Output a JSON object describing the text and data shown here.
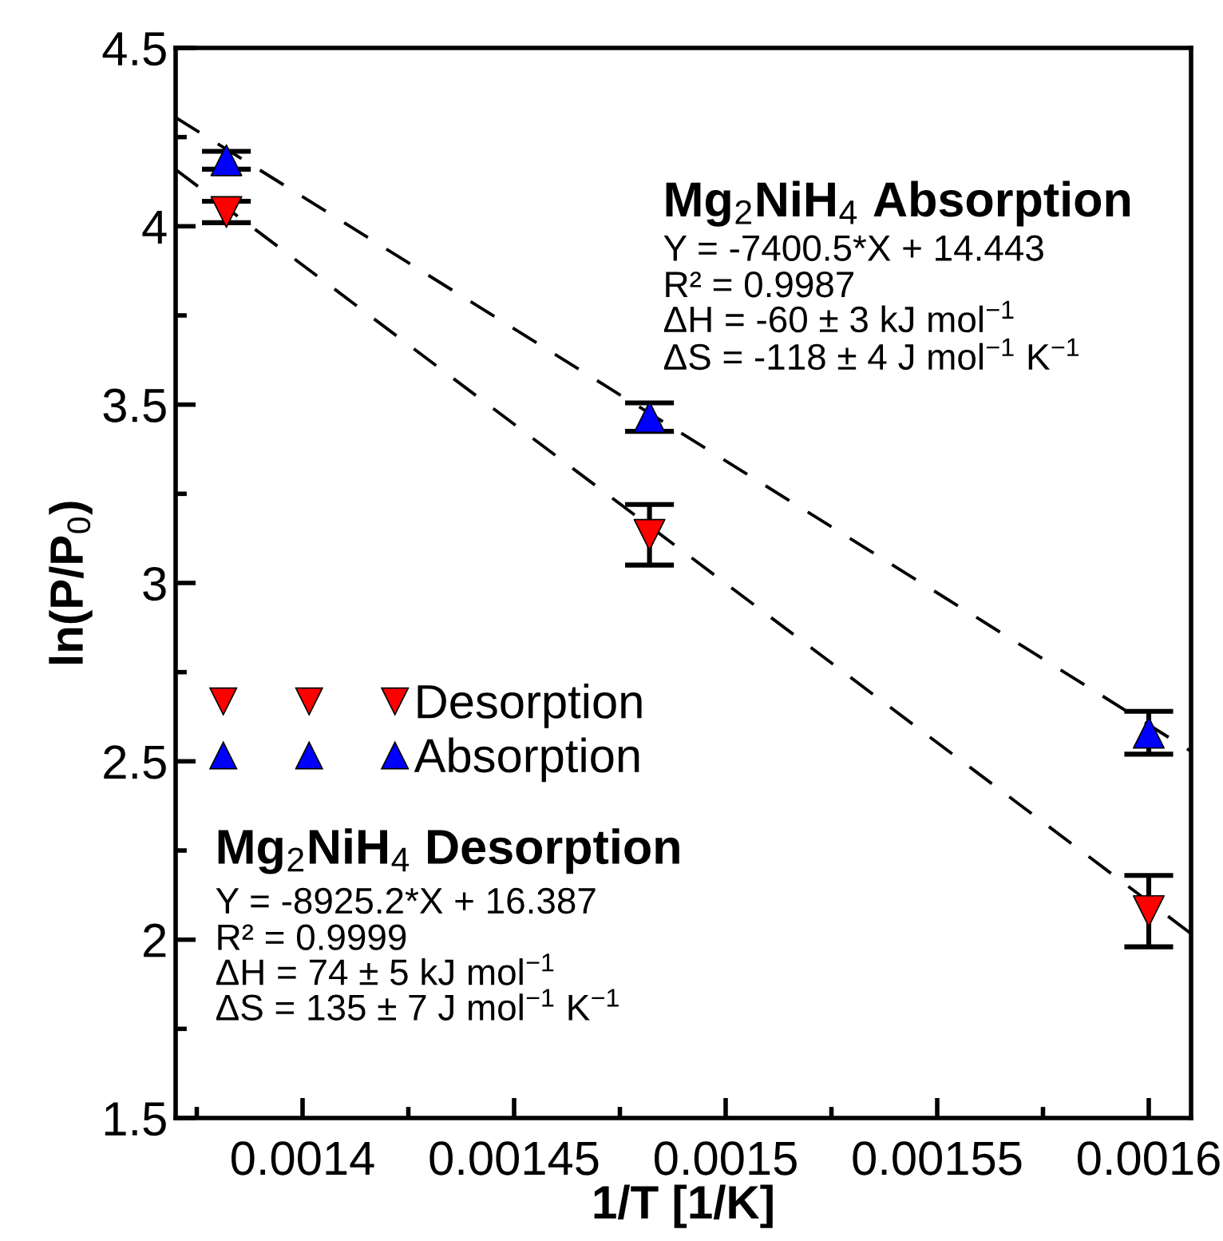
{
  "chart_data": {
    "type": "scatter",
    "xlabel": "1/T [1/K]",
    "ylabel": "ln(P/P$_{0}$)",
    "xlim": [
      0.00137,
      0.00161
    ],
    "ylim": [
      1.5,
      4.5
    ],
    "xticks": [
      {
        "value": 0.001375,
        "label": null
      },
      0.0014,
      {
        "value": 0.001425,
        "label": null
      },
      0.00145,
      {
        "value": 0.001475,
        "label": null
      },
      0.0015,
      {
        "value": 0.001525,
        "label": null
      },
      0.00155,
      {
        "value": 0.001575,
        "label": null
      },
      0.0016
    ],
    "yticks": [
      1.5,
      {
        "value": 1.75,
        "label": null
      },
      2,
      {
        "value": 2.25,
        "label": null
      },
      2.5,
      {
        "value": 2.75,
        "label": null
      },
      3,
      {
        "value": 3.25,
        "label": null
      },
      3.5,
      {
        "value": 3.75,
        "label": null
      },
      4,
      {
        "value": 4.25,
        "label": null
      },
      4.5
    ],
    "legend": "left",
    "grid": false,
    "series": [
      {
        "name": "Desorption",
        "color": "#ff0000",
        "marker": "triangle_down",
        "x": [
          0.001382,
          0.001482,
          0.0016
        ],
        "values": [
          4.04,
          3.135,
          2.08
        ],
        "errors": [
          0.03,
          0.085,
          0.1
        ]
      },
      {
        "name": "Absorption",
        "color": "#0000ff",
        "marker": "triangle",
        "x": [
          0.001382,
          0.001482,
          0.0016
        ],
        "values": [
          4.185,
          3.465,
          2.58
        ],
        "errors": [
          0.025,
          0.04,
          0.06
        ]
      },
      {
        "type": "line",
        "color": "#000000",
        "line_style": "dashed",
        "x": [
          0.00137,
          0.00161
        ],
        "values": [
          4.305,
          2.528
        ]
      },
      {
        "type": "line",
        "color": "#000000",
        "line_style": "dashed",
        "x": [
          0.00137,
          0.00161
        ],
        "values": [
          4.159,
          2.017
        ]
      }
    ],
    "annotations": [
      "Mg$_{2}$NiH$_{4}$ Absorption",
      "Y = -7400.5*X + 14.443",
      "R² = 0.9987",
      "ΔH = -60 ± 3 kJ mol$^{−1}$",
      "ΔS = -118 ± 4 J mol$^{−1}$ K$^{−1}$",
      "Mg$_{2}$NiH$_{4}$ Desorption",
      "Y = -8925.2*X + 16.387",
      "R² = 0.9999",
      "ΔH = 74 ± 5 kJ mol$^{−1}$",
      "ΔS = 135 ± 7 J mol$^{−1}$ K$^{−1}$"
    ]
  }
}
